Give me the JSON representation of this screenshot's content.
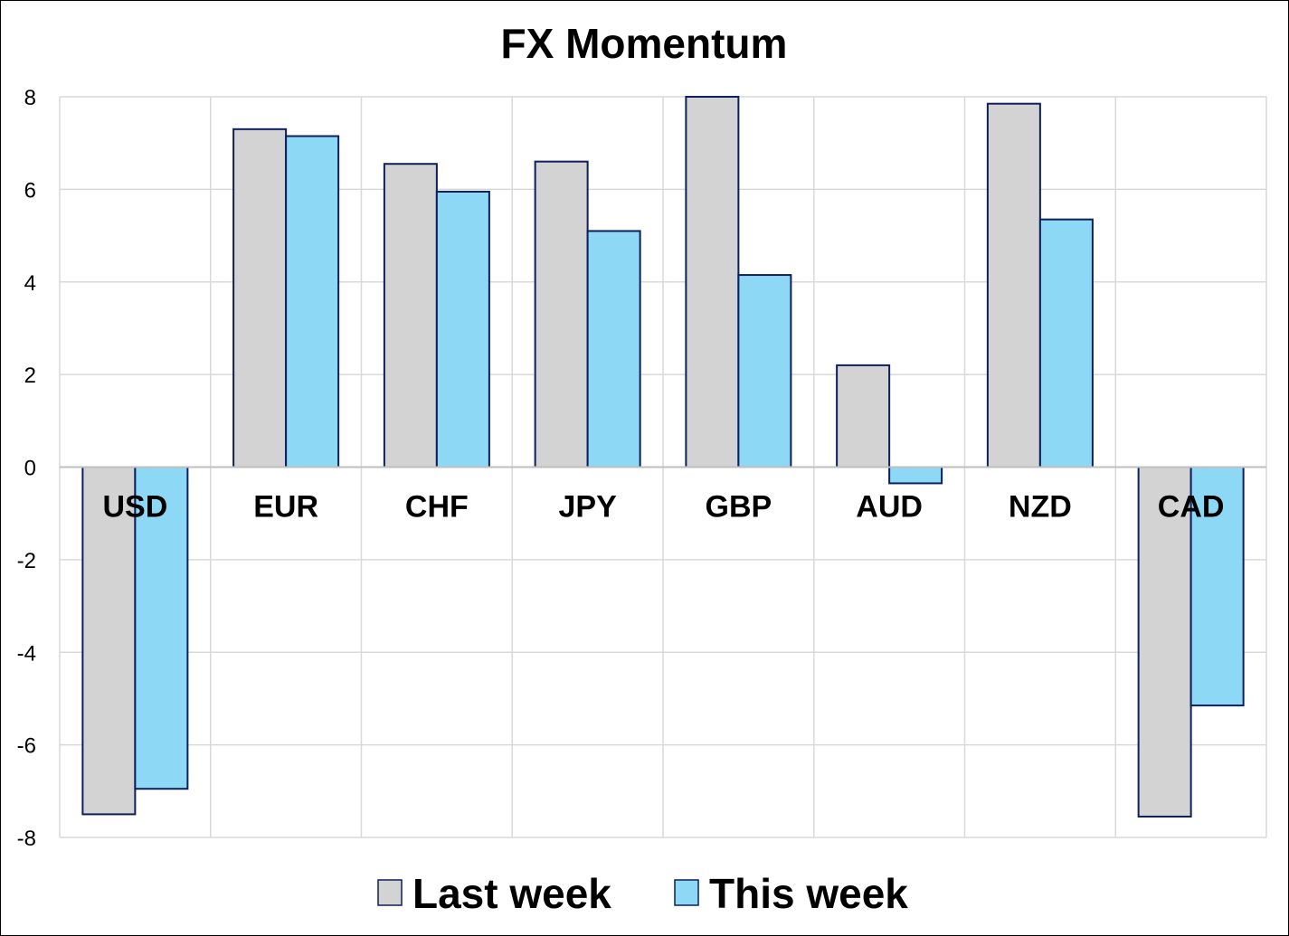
{
  "chart_data": {
    "type": "bar",
    "title": "FX Momentum",
    "categories": [
      "USD",
      "EUR",
      "CHF",
      "JPY",
      "GBP",
      "AUD",
      "NZD",
      "CAD"
    ],
    "series": [
      {
        "name": "Last week",
        "color": "#d3d3d3",
        "values": [
          -7.5,
          7.3,
          6.55,
          6.6,
          8.0,
          2.2,
          7.85,
          -7.55
        ]
      },
      {
        "name": "This week",
        "color": "#8dd9f5",
        "values": [
          -6.95,
          7.15,
          5.95,
          5.1,
          4.15,
          -0.35,
          5.35,
          -5.15
        ]
      }
    ],
    "ylim": [
      -8,
      8
    ],
    "yticks": [
      "8",
      "6",
      "4",
      "2",
      "0",
      "-2",
      "-4",
      "-6",
      "-8"
    ],
    "bar_outline_color": "#0d1f5c",
    "grid": true,
    "legend_position": "bottom"
  }
}
